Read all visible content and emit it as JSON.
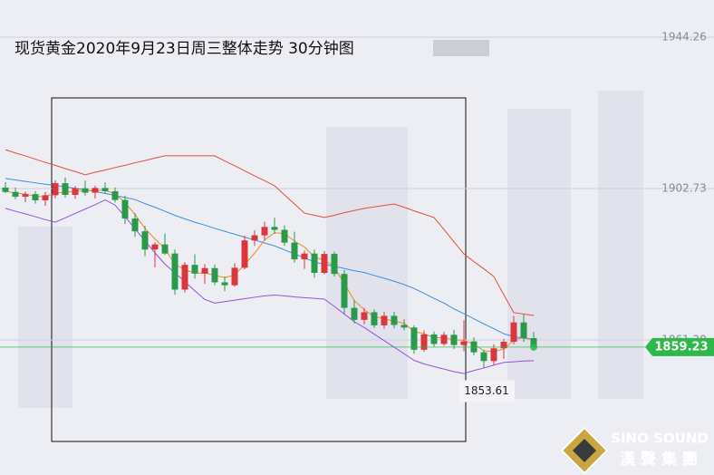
{
  "chart_data": {
    "type": "candlestick",
    "title": "现货黄金2020年9月23日周三整体走势 30分钟图",
    "open": [
      1903.0,
      1901.8,
      1900.5,
      1901.2,
      1899.5,
      1900.9,
      1904.2,
      1901.0,
      1902.8,
      1901.6,
      1902.9,
      1902.0,
      1899.6,
      1894.5,
      1891.0,
      1886.0,
      1887.4,
      1884.9,
      1875.0,
      1881.8,
      1879.4,
      1880.9,
      1877.0,
      1876.2,
      1881.0,
      1888.5,
      1889.9,
      1892.2,
      1891.4,
      1887.9,
      1883.3,
      1884.9,
      1879.6,
      1884.8,
      1879.3,
      1870.0,
      1866.7,
      1868.8,
      1865.2,
      1867.8,
      1865.3,
      1864.6,
      1858.5,
      1862.7,
      1860.1,
      1862.6,
      1859.8,
      1860.8,
      1857.8,
      1855.4,
      1858.9,
      1860.7,
      1866.0,
      1861.7
    ],
    "high": [
      1904.5,
      1903.0,
      1901.9,
      1902.0,
      1901.8,
      1905.0,
      1905.8,
      1903.4,
      1904.9,
      1903.5,
      1904.4,
      1903.0,
      1900.8,
      1896.0,
      1892.5,
      1888.0,
      1890.4,
      1886.0,
      1882.6,
      1884.7,
      1882.0,
      1881.9,
      1878.6,
      1882.2,
      1889.8,
      1891.3,
      1893.6,
      1894.7,
      1892.6,
      1890.9,
      1885.7,
      1886.0,
      1885.6,
      1885.4,
      1880.4,
      1872.2,
      1870.0,
      1869.6,
      1868.9,
      1868.9,
      1866.9,
      1865.2,
      1863.8,
      1863.5,
      1863.4,
      1864.0,
      1866.6,
      1861.9,
      1858.5,
      1860.0,
      1861.5,
      1867.8,
      1868.3,
      1863.4
    ],
    "low": [
      1901.5,
      1899.8,
      1899.0,
      1898.6,
      1898.0,
      1900.1,
      1900.2,
      1899.9,
      1900.8,
      1900.0,
      1901.2,
      1898.9,
      1893.0,
      1889.5,
      1884.2,
      1881.1,
      1884.5,
      1873.6,
      1874.2,
      1878.0,
      1876.6,
      1876.2,
      1874.6,
      1875.8,
      1880.6,
      1887.0,
      1888.5,
      1890.3,
      1887.0,
      1882.4,
      1880.7,
      1878.3,
      1879.2,
      1878.6,
      1868.4,
      1865.7,
      1865.5,
      1864.5,
      1864.3,
      1864.4,
      1863.8,
      1857.4,
      1857.9,
      1859.4,
      1859.6,
      1858.7,
      1858.1,
      1857.0,
      1853.61,
      1854.4,
      1856.0,
      1860.0,
      1860.7,
      1858.3
    ],
    "close": [
      1901.8,
      1900.5,
      1901.2,
      1899.5,
      1900.9,
      1904.2,
      1901.0,
      1902.8,
      1901.6,
      1902.9,
      1902.0,
      1899.6,
      1894.5,
      1891.0,
      1886.0,
      1887.4,
      1884.9,
      1875.0,
      1881.8,
      1879.4,
      1880.9,
      1877.0,
      1876.2,
      1881.0,
      1888.5,
      1889.9,
      1892.2,
      1891.4,
      1887.9,
      1883.3,
      1884.9,
      1879.6,
      1884.8,
      1879.3,
      1870.0,
      1866.7,
      1868.8,
      1865.2,
      1867.8,
      1865.3,
      1864.6,
      1858.5,
      1862.7,
      1860.1,
      1862.6,
      1859.8,
      1860.8,
      1857.8,
      1855.4,
      1858.9,
      1860.7,
      1866.0,
      1861.7,
      1859.23
    ],
    "up_color": "#d9363e",
    "down_color": "#2a9a4a",
    "lines": [
      {
        "color": "#e0503a",
        "values": [
          1913.4,
          1912.5,
          1911.7,
          1910.8,
          1909.9,
          1909.1,
          1908.2,
          1907.4,
          1906.5,
          1907.2,
          1907.8,
          1908.5,
          1909.1,
          1909.8,
          1910.4,
          1911.1,
          1911.7,
          1911.7,
          1911.7,
          1911.7,
          1911.7,
          1911.7,
          1910.3,
          1909.0,
          1907.6,
          1906.2,
          1904.9,
          1903.5,
          1901.0,
          1898.5,
          1896.0,
          1895.4,
          1894.8,
          1895.4,
          1896.1,
          1896.7,
          1897.3,
          1897.7,
          1898.1,
          1898.5,
          1897.6,
          1896.6,
          1895.7,
          1894.8,
          1891.5,
          1888.1,
          1884.8,
          1882.7,
          1880.7,
          1878.6,
          1873.6,
          1868.7,
          1868.3,
          1867.9
        ]
      },
      {
        "color": "#3a8ee0",
        "values": [
          1905.5,
          1905.1,
          1904.7,
          1904.3,
          1903.9,
          1903.6,
          1903.2,
          1902.8,
          1902.4,
          1901.9,
          1901.4,
          1900.8,
          1900.3,
          1899.7,
          1898.6,
          1897.6,
          1896.5,
          1895.4,
          1894.4,
          1893.5,
          1892.7,
          1891.8,
          1891.0,
          1890.2,
          1889.4,
          1888.6,
          1887.8,
          1887.0,
          1885.9,
          1884.8,
          1883.7,
          1882.6,
          1881.9,
          1881.4,
          1880.8,
          1880.2,
          1879.7,
          1878.9,
          1878.1,
          1877.3,
          1876.4,
          1875.3,
          1874.0,
          1872.6,
          1871.3,
          1869.7,
          1868.4,
          1867.0,
          1865.6,
          1864.3,
          1862.9,
          1862.1,
          1861.7,
          1861.3
        ]
      },
      {
        "color": "#f08a1c",
        "values": [
          1902.0,
          1901.5,
          1901.2,
          1900.6,
          1900.5,
          1901.5,
          1901.7,
          1902.0,
          1902.1,
          1902.3,
          1902.2,
          1901.3,
          1898.9,
          1895.6,
          1891.8,
          1888.9,
          1886.3,
          1881.9,
          1880.5,
          1879.5,
          1879.6,
          1878.9,
          1878.3,
          1879.0,
          1881.9,
          1885.0,
          1888.6,
          1890.6,
          1890.4,
          1888.3,
          1886.7,
          1883.9,
          1883.1,
          1881.2,
          1876.6,
          1872.0,
          1869.5,
          1867.6,
          1867.0,
          1866.3,
          1865.8,
          1863.5,
          1862.9,
          1861.8,
          1861.8,
          1861.2,
          1861.1,
          1860.0,
          1858.2,
          1858.0,
          1858.7,
          1861.1,
          1861.9,
          1861.3
        ]
      },
      {
        "color": "#9a4ee0",
        "values": [
          1897.3,
          1896.5,
          1895.8,
          1895.0,
          1894.2,
          1893.5,
          1894.7,
          1895.9,
          1897.1,
          1898.3,
          1899.6,
          1898.2,
          1895.0,
          1891.7,
          1888.4,
          1885.1,
          1882.0,
          1879.6,
          1877.2,
          1874.7,
          1872.3,
          1871.3,
          1871.7,
          1872.1,
          1872.5,
          1872.9,
          1873.3,
          1873.5,
          1873.3,
          1873.0,
          1872.8,
          1872.6,
          1872.4,
          1870.4,
          1868.3,
          1866.2,
          1864.6,
          1862.8,
          1861.0,
          1859.2,
          1857.4,
          1855.6,
          1854.6,
          1853.9,
          1853.2,
          1852.5,
          1852.0,
          1852.8,
          1853.5,
          1854.3,
          1855.0,
          1855.2,
          1855.4,
          1855.5
        ]
      }
    ],
    "ylim": [
      1824.14,
      1954.46
    ],
    "yticks": [
      {
        "value": 1861.2,
        "label": "1861.20"
      },
      1902.73,
      1944.26
    ],
    "grid": true,
    "price_color": "#2db84a",
    "logo": {
      "name": "SINO SOUND",
      "name_cn": "漢聲集團"
    }
  }
}
